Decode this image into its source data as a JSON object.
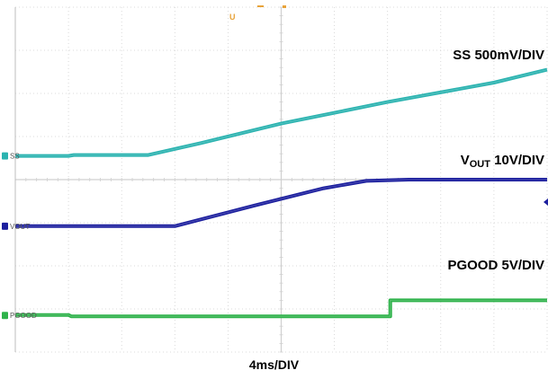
{
  "chart_data": {
    "type": "line",
    "title": "",
    "xlabel": "4ms/DIV",
    "divisions": {
      "x": 10,
      "y": 8
    },
    "x_range_div": [
      0,
      10
    ],
    "grid": true,
    "series": [
      {
        "name": "SS",
        "channel_tag": "SS",
        "scale_text": "SS 500mV/DIV",
        "color": "#2bb3b0",
        "ground_div": 4.55,
        "points": [
          [
            0,
            4.55
          ],
          [
            1.0,
            4.55
          ],
          [
            1.1,
            4.57
          ],
          [
            2.5,
            4.57
          ],
          [
            3.5,
            4.85
          ],
          [
            5.0,
            5.3
          ],
          [
            7.0,
            5.8
          ],
          [
            9.0,
            6.25
          ],
          [
            10.0,
            6.55
          ]
        ]
      },
      {
        "name": "VOUT",
        "channel_tag": "VOUT",
        "scale_text_main": "V",
        "scale_text_sub": "OUT",
        "scale_text_rest": " 10V/DIV",
        "color": "#1c1f9e",
        "ground_div": 2.92,
        "points": [
          [
            0,
            2.92
          ],
          [
            1.0,
            2.92
          ],
          [
            3.0,
            2.92
          ],
          [
            4.5,
            3.4
          ],
          [
            5.8,
            3.8
          ],
          [
            6.6,
            3.97
          ],
          [
            7.4,
            4.0
          ],
          [
            10.0,
            4.0
          ]
        ]
      },
      {
        "name": "PGOOD",
        "channel_tag": "PGOOD",
        "scale_text": "PGOOD 5V/DIV",
        "color": "#2eb24a",
        "ground_div": 0.85,
        "points": [
          [
            0,
            0.86
          ],
          [
            1.0,
            0.86
          ],
          [
            1.05,
            0.83
          ],
          [
            7.05,
            0.83
          ],
          [
            7.05,
            1.2
          ],
          [
            10.0,
            1.2
          ]
        ]
      }
    ]
  },
  "colors": {
    "grid": "#d0d0d0",
    "trigger_marker": "#e8a33a",
    "background": "#ffffff"
  },
  "markers": {
    "trigger_glyph": "U"
  }
}
